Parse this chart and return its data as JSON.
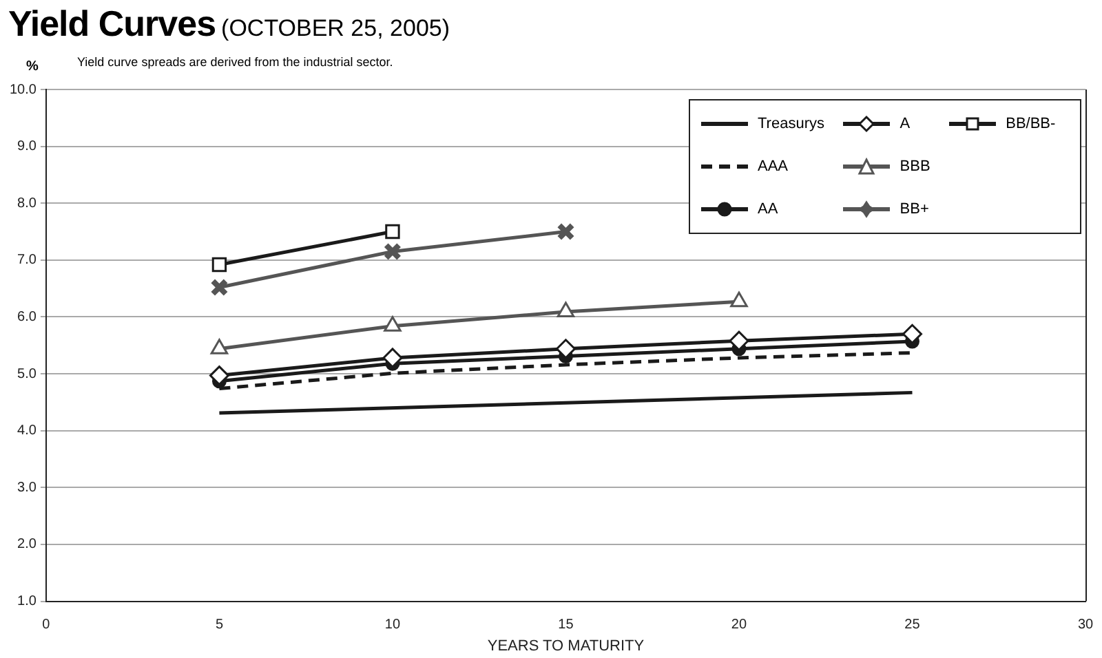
{
  "chart_data": {
    "type": "line",
    "title": "Yield Curves",
    "subtitle": "(OCTOBER 25, 2005)",
    "annotations": [
      "Yield curve spreads are derived from the industrial sector."
    ],
    "xlabel": "YEARS TO MATURITY",
    "ylabel": "%",
    "xlim": [
      0,
      30
    ],
    "xticks": [
      0,
      5,
      10,
      15,
      20,
      25,
      30
    ],
    "ylim": [
      1,
      10
    ],
    "yticks": [
      {
        "value": 1,
        "label": "1.0"
      },
      {
        "value": 2,
        "label": "2.0"
      },
      {
        "value": 3,
        "label": "3.0"
      },
      {
        "value": 4,
        "label": "4.0"
      },
      {
        "value": 5,
        "label": "5.0"
      },
      {
        "value": 6,
        "label": "6.0"
      },
      {
        "value": 7,
        "label": "7.0"
      },
      {
        "value": 8,
        "label": "8.0"
      },
      {
        "value": 9,
        "label": "9.0"
      },
      {
        "value": 10,
        "label": "10.0"
      }
    ],
    "grid": "y",
    "legend": "top right",
    "series": [
      {
        "name": "Treasurys",
        "color": "#1a1a1a",
        "marker": "none",
        "line_style": "solid",
        "x": [
          5,
          25
        ],
        "values": [
          4.31,
          4.67
        ]
      },
      {
        "name": "AAA",
        "color": "#1a1a1a",
        "marker": "none",
        "line_style": "dashed",
        "x": [
          5,
          10,
          15,
          20,
          25
        ],
        "values": [
          4.74,
          5.01,
          5.16,
          5.28,
          5.37
        ]
      },
      {
        "name": "AA",
        "color": "#1a1a1a",
        "marker": "circle",
        "line_style": "solid",
        "x": [
          5,
          10,
          15,
          20,
          25
        ],
        "values": [
          4.87,
          5.18,
          5.31,
          5.44,
          5.57
        ]
      },
      {
        "name": "A",
        "color": "#1a1a1a",
        "marker": "diamond",
        "line_style": "solid",
        "x": [
          5,
          10,
          15,
          20,
          25
        ],
        "values": [
          4.97,
          5.28,
          5.44,
          5.58,
          5.7
        ]
      },
      {
        "name": "BBB",
        "color": "#555555",
        "marker": "triangle",
        "line_style": "solid",
        "x": [
          5,
          10,
          15,
          20
        ],
        "values": [
          5.44,
          5.84,
          6.09,
          6.27
        ]
      },
      {
        "name": "BB+",
        "color": "#555555",
        "marker": "cross",
        "line_style": "solid",
        "x": [
          5,
          10,
          15
        ],
        "values": [
          6.52,
          7.15,
          7.5
        ]
      },
      {
        "name": "BB/BB-",
        "color": "#1a1a1a",
        "marker": "square",
        "line_style": "solid",
        "x": [
          5,
          10
        ],
        "values": [
          6.92,
          7.5
        ]
      }
    ]
  }
}
